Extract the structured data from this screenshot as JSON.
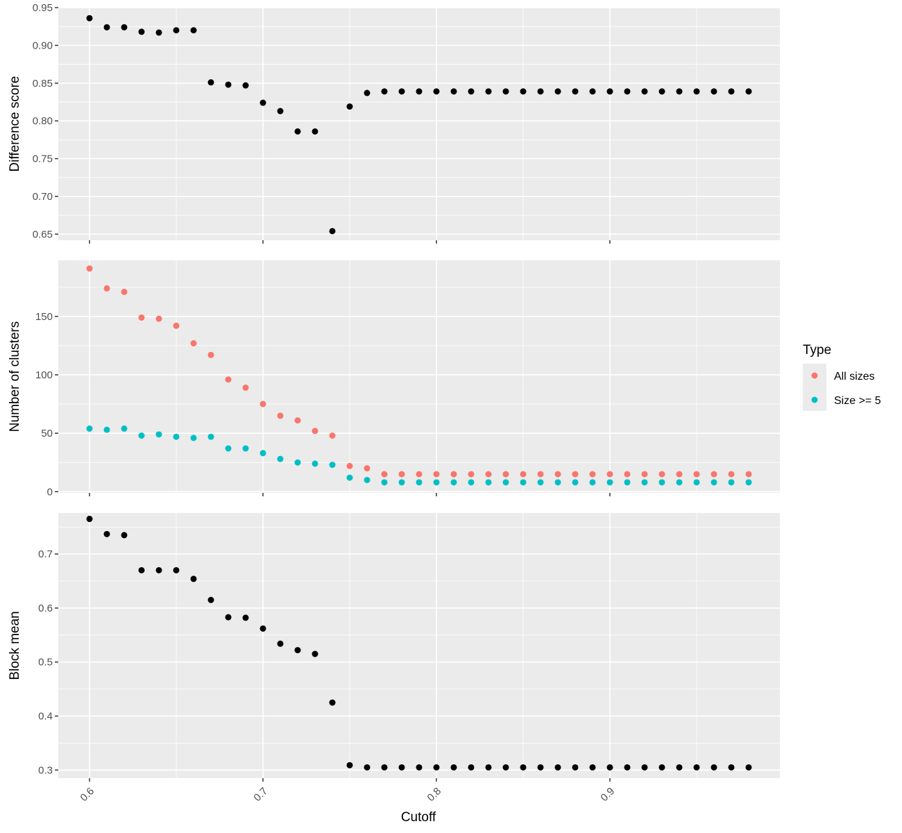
{
  "chart_data": [
    {
      "type": "scatter",
      "id": "difference",
      "xlabel": "",
      "ylabel": "Difference score",
      "xlim": [
        0.582,
        0.998
      ],
      "ylim": [
        0.642,
        0.95
      ],
      "yticks": [
        0.65,
        0.7,
        0.75,
        0.8,
        0.85,
        0.9,
        0.95
      ],
      "ytick_labels": [
        "0.65",
        "0.70",
        "0.75",
        "0.80",
        "0.85",
        "0.90",
        "0.95"
      ],
      "grid": true,
      "x": [
        0.6,
        0.61,
        0.62,
        0.63,
        0.64,
        0.65,
        0.66,
        0.67,
        0.68,
        0.69,
        0.7,
        0.71,
        0.72,
        0.73,
        0.74,
        0.75,
        0.76,
        0.77,
        0.78,
        0.79,
        0.8,
        0.81,
        0.82,
        0.83,
        0.84,
        0.85,
        0.86,
        0.87,
        0.88,
        0.89,
        0.9,
        0.91,
        0.92,
        0.93,
        0.94,
        0.95,
        0.96,
        0.97,
        0.98
      ],
      "series": [
        {
          "color": "#000000",
          "values": [
            0.936,
            0.924,
            0.924,
            0.918,
            0.917,
            0.92,
            0.92,
            0.851,
            0.848,
            0.847,
            0.824,
            0.813,
            0.786,
            0.786,
            0.654,
            0.819,
            0.837,
            0.839,
            0.839,
            0.839,
            0.839,
            0.839,
            0.839,
            0.839,
            0.839,
            0.839,
            0.839,
            0.839,
            0.839,
            0.839,
            0.839,
            0.839,
            0.839,
            0.839,
            0.839,
            0.839,
            0.839,
            0.839,
            0.839
          ]
        }
      ]
    },
    {
      "type": "scatter",
      "id": "clusters",
      "xlabel": "",
      "ylabel": "Number of clusters",
      "xlim": [
        0.582,
        0.998
      ],
      "ylim": [
        -1,
        198
      ],
      "yticks": [
        0,
        50,
        100,
        150
      ],
      "ytick_labels": [
        "0",
        "50",
        "100",
        "150"
      ],
      "grid": true,
      "legend_position": "right",
      "x": [
        0.6,
        0.61,
        0.62,
        0.63,
        0.64,
        0.65,
        0.66,
        0.67,
        0.68,
        0.69,
        0.7,
        0.71,
        0.72,
        0.73,
        0.74,
        0.75,
        0.76,
        0.77,
        0.78,
        0.79,
        0.8,
        0.81,
        0.82,
        0.83,
        0.84,
        0.85,
        0.86,
        0.87,
        0.88,
        0.89,
        0.9,
        0.91,
        0.92,
        0.93,
        0.94,
        0.95,
        0.96,
        0.97,
        0.98
      ],
      "series": [
        {
          "name": "All sizes",
          "color": "#f8766d",
          "values": [
            191,
            174,
            171,
            149,
            148,
            142,
            127,
            117,
            96,
            89,
            75,
            65,
            61,
            52,
            48,
            22,
            20,
            15,
            15,
            15,
            15,
            15,
            15,
            15,
            15,
            15,
            15,
            15,
            15,
            15,
            15,
            15,
            15,
            15,
            15,
            15,
            15,
            15,
            15
          ]
        },
        {
          "name": "Size >= 5",
          "color": "#00bfc4",
          "values": [
            54,
            53,
            54,
            48,
            49,
            47,
            46,
            47,
            37,
            37,
            33,
            28,
            25,
            24,
            23,
            12,
            10,
            8,
            8,
            8,
            8,
            8,
            8,
            8,
            8,
            8,
            8,
            8,
            8,
            8,
            8,
            8,
            8,
            8,
            8,
            8,
            8,
            8,
            8
          ]
        }
      ]
    },
    {
      "type": "scatter",
      "id": "blockmean",
      "xlabel": "Cutoff",
      "ylabel": "Block mean",
      "xlim": [
        0.582,
        0.998
      ],
      "ylim": [
        0.285,
        0.776
      ],
      "yticks": [
        0.3,
        0.4,
        0.5,
        0.6,
        0.7
      ],
      "ytick_labels": [
        "0.3",
        "0.4",
        "0.5",
        "0.6",
        "0.7"
      ],
      "xticks": [
        0.6,
        0.7,
        0.8,
        0.9
      ],
      "xtick_labels": [
        "0.6",
        "0.7",
        "0.8",
        "0.9"
      ],
      "grid": true,
      "x": [
        0.6,
        0.61,
        0.62,
        0.63,
        0.64,
        0.65,
        0.66,
        0.67,
        0.68,
        0.69,
        0.7,
        0.71,
        0.72,
        0.73,
        0.74,
        0.75,
        0.76,
        0.77,
        0.78,
        0.79,
        0.8,
        0.81,
        0.82,
        0.83,
        0.84,
        0.85,
        0.86,
        0.87,
        0.88,
        0.89,
        0.9,
        0.91,
        0.92,
        0.93,
        0.94,
        0.95,
        0.96,
        0.97,
        0.98
      ],
      "series": [
        {
          "color": "#000000",
          "values": [
            0.765,
            0.737,
            0.735,
            0.67,
            0.67,
            0.67,
            0.654,
            0.615,
            0.583,
            0.582,
            0.562,
            0.534,
            0.522,
            0.515,
            0.425,
            0.309,
            0.305,
            0.305,
            0.305,
            0.305,
            0.305,
            0.305,
            0.305,
            0.305,
            0.305,
            0.305,
            0.305,
            0.305,
            0.305,
            0.305,
            0.305,
            0.305,
            0.305,
            0.305,
            0.305,
            0.305,
            0.305,
            0.305,
            0.305
          ]
        }
      ]
    }
  ],
  "legend": {
    "title": "Type",
    "items": [
      {
        "label": "All sizes",
        "color": "#f8766d"
      },
      {
        "label": "Size >= 5",
        "color": "#00bfc4"
      }
    ]
  }
}
